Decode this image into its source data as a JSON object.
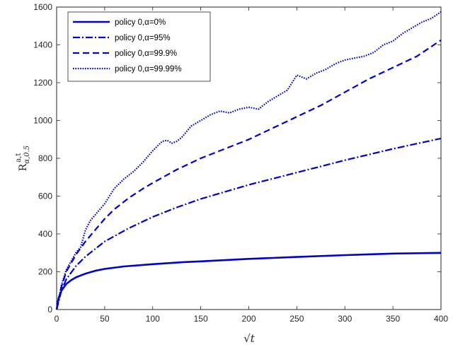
{
  "chart_data": {
    "type": "line",
    "title": "",
    "xlabel": "√t",
    "ylabel_main": "R",
    "ylabel_sup": "a,t",
    "ylabel_sub": "α,0.5",
    "xlim": [
      0,
      400
    ],
    "ylim": [
      0,
      1600
    ],
    "xticks": [
      0,
      50,
      100,
      150,
      200,
      250,
      300,
      350,
      400
    ],
    "yticks": [
      0,
      200,
      400,
      600,
      800,
      1000,
      1200,
      1400,
      1600
    ],
    "grid": false,
    "legend_position": "top-left",
    "line_color": "#0000cc",
    "series": [
      {
        "name": "policy 0,α=0%",
        "style": "solid",
        "x": [
          0,
          2,
          5,
          10,
          15,
          20,
          30,
          40,
          50,
          70,
          100,
          130,
          150,
          200,
          250,
          300,
          350,
          400
        ],
        "values": [
          0,
          60,
          100,
          135,
          155,
          170,
          190,
          205,
          215,
          228,
          240,
          250,
          255,
          268,
          278,
          288,
          296,
          300
        ]
      },
      {
        "name": "policy 0,α=95%",
        "style": "dashdot",
        "x": [
          0,
          5,
          10,
          20,
          30,
          50,
          75,
          100,
          125,
          150,
          200,
          250,
          300,
          350,
          400
        ],
        "values": [
          0,
          100,
          160,
          230,
          280,
          360,
          430,
          490,
          540,
          585,
          660,
          725,
          790,
          850,
          905
        ]
      },
      {
        "name": "policy 0,α=99.9%",
        "style": "dashed",
        "x": [
          0,
          5,
          10,
          20,
          30,
          40,
          50,
          60,
          75,
          90,
          100,
          125,
          150,
          175,
          200,
          225,
          250,
          275,
          300,
          325,
          350,
          375,
          400
        ],
        "values": [
          0,
          120,
          200,
          290,
          360,
          420,
          480,
          530,
          590,
          640,
          670,
          740,
          800,
          850,
          900,
          960,
          1020,
          1080,
          1150,
          1220,
          1280,
          1340,
          1425
        ]
      },
      {
        "name": "policy 0,α=99.99%",
        "style": "dotted",
        "x": [
          0,
          5,
          10,
          20,
          25,
          30,
          35,
          40,
          50,
          60,
          70,
          80,
          90,
          100,
          110,
          115,
          120,
          125,
          130,
          140,
          150,
          160,
          170,
          180,
          190,
          200,
          210,
          220,
          230,
          240,
          250,
          255,
          260,
          270,
          280,
          290,
          300,
          310,
          320,
          330,
          340,
          350,
          360,
          370,
          380,
          390,
          400
        ],
        "values": [
          0,
          130,
          210,
          300,
          330,
          420,
          470,
          500,
          560,
          640,
          690,
          730,
          780,
          840,
          890,
          895,
          880,
          890,
          910,
          970,
          1000,
          1030,
          1050,
          1040,
          1060,
          1070,
          1060,
          1100,
          1130,
          1160,
          1240,
          1230,
          1220,
          1250,
          1270,
          1300,
          1320,
          1330,
          1340,
          1360,
          1400,
          1420,
          1460,
          1490,
          1520,
          1540,
          1575
        ]
      }
    ]
  }
}
